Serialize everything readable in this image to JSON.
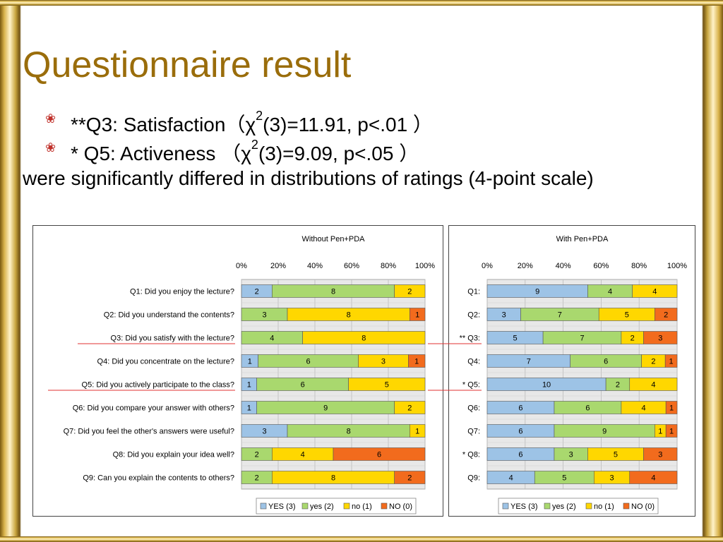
{
  "slide": {
    "title": "Questionnaire result",
    "bullets": [
      {
        "prefix": "**Q3: Satisfaction（χ",
        "sup": "2",
        "suffix": "(3)=11.91, p<.01 ）"
      },
      {
        "prefix": "*  Q5: Activeness （χ",
        "sup": "2",
        "suffix": "(3)=9.09, p<.05 ）"
      }
    ],
    "paragraph": "were significantly differed in distributions of ratings (4-point scale)",
    "bullet_icon": "flower-bullet-icon"
  },
  "colors": {
    "title": "#9a6d0b",
    "YES (3)": "#9dc3e6",
    "yes (2)": "#a9d86e",
    "no (1)": "#ffd700",
    "NO (0)": "#f26b1d",
    "highlight_line": "#e03030"
  },
  "chart_data": [
    {
      "type": "bar",
      "orientation": "horizontal",
      "stacked": "percent",
      "title": "Without Pen+PDA",
      "xlim": [
        0,
        100
      ],
      "x_ticks": [
        "0%",
        "20%",
        "40%",
        "60%",
        "80%",
        "100%"
      ],
      "legend_position": "bottom",
      "categories": [
        "Q1: Did you enjoy the lecture?",
        "Q2: Did you understand the contents?",
        "Q3: Did you satisfy with the lecture?",
        "Q4: Did you concentrate on the lecture?",
        "Q5: Did you actively participate to the class?",
        "Q6: Did you compare your answer with others?",
        "Q7: Did you feel the other's answers were useful?",
        "Q8: Did you explain your idea well?",
        "Q9: Can you explain the contents to others?"
      ],
      "highlighted": [
        2,
        4
      ],
      "series": [
        {
          "name": "YES (3)",
          "values": [
            2,
            0,
            0,
            1,
            1,
            1,
            3,
            0,
            0
          ]
        },
        {
          "name": "yes (2)",
          "values": [
            8,
            3,
            4,
            6,
            6,
            9,
            8,
            2,
            2
          ]
        },
        {
          "name": "no (1)",
          "values": [
            2,
            8,
            8,
            3,
            5,
            2,
            1,
            4,
            8
          ]
        },
        {
          "name": "NO (0)",
          "values": [
            0,
            1,
            0,
            1,
            0,
            0,
            0,
            6,
            2
          ]
        }
      ]
    },
    {
      "type": "bar",
      "orientation": "horizontal",
      "stacked": "percent",
      "title": "With Pen+PDA",
      "xlim": [
        0,
        100
      ],
      "x_ticks": [
        "0%",
        "20%",
        "40%",
        "60%",
        "80%",
        "100%"
      ],
      "legend_position": "bottom",
      "categories": [
        "Q1:",
        "Q2:",
        "** Q3:",
        "Q4:",
        "* Q5:",
        "Q6:",
        "Q7:",
        "* Q8:",
        "Q9:"
      ],
      "highlighted": [
        2,
        4
      ],
      "series": [
        {
          "name": "YES (3)",
          "values": [
            9,
            3,
            5,
            7,
            10,
            6,
            6,
            6,
            4
          ]
        },
        {
          "name": "yes (2)",
          "values": [
            4,
            7,
            7,
            6,
            2,
            6,
            9,
            3,
            5
          ]
        },
        {
          "name": "no (1)",
          "values": [
            4,
            5,
            2,
            2,
            4,
            4,
            1,
            5,
            3
          ]
        },
        {
          "name": "NO (0)",
          "values": [
            0,
            2,
            3,
            1,
            0,
            1,
            1,
            3,
            4
          ]
        }
      ]
    }
  ]
}
